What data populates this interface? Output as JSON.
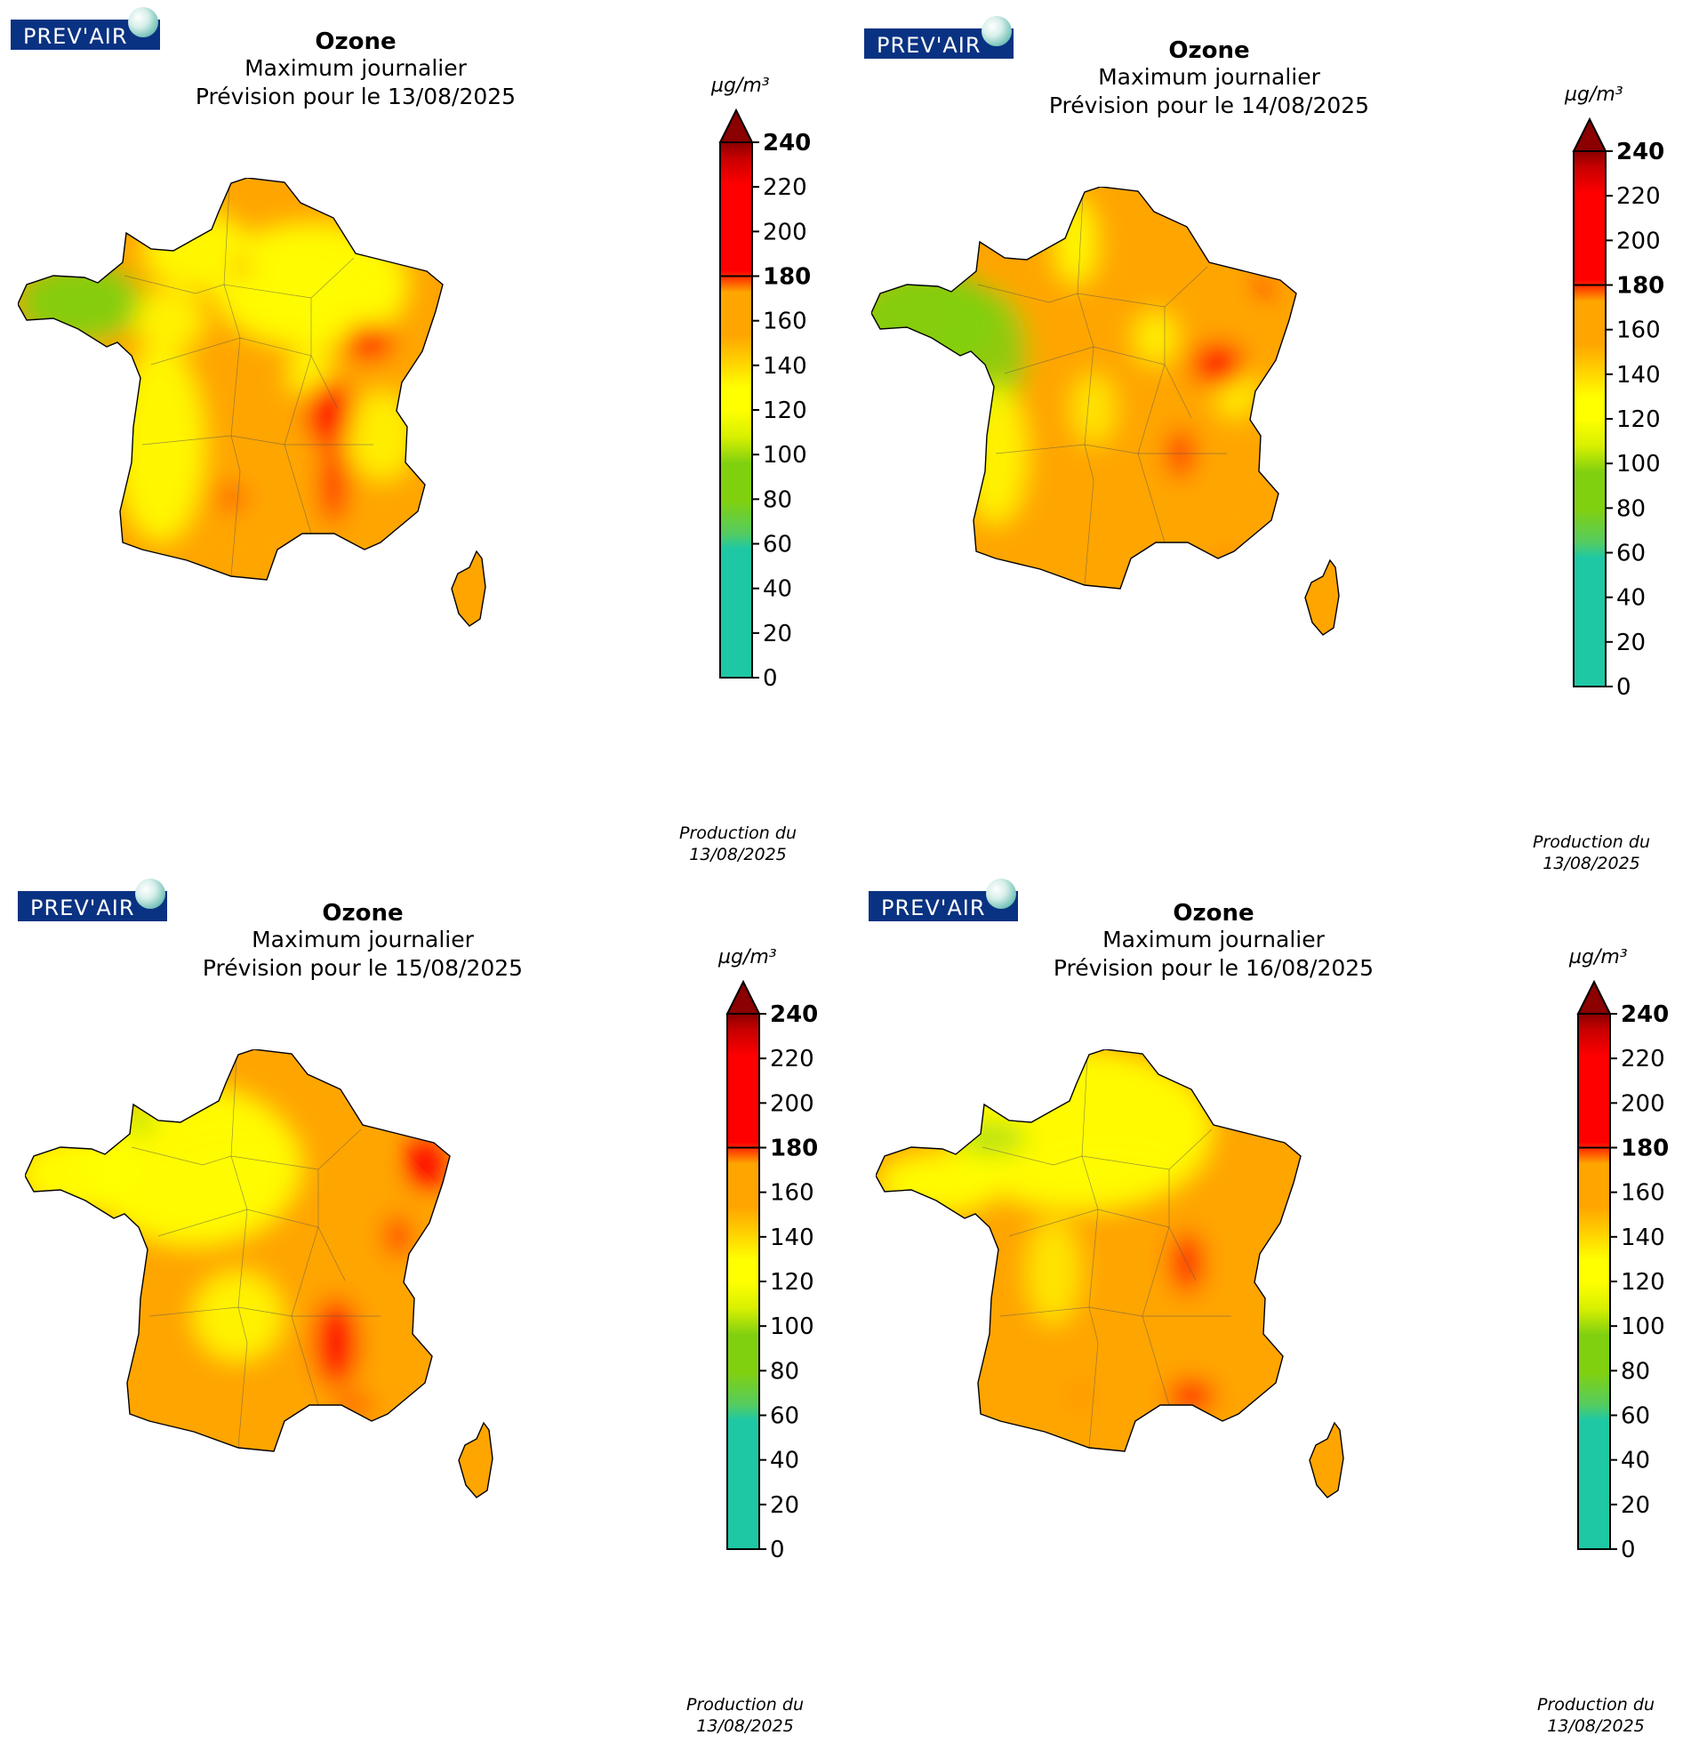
{
  "logo_text": "PREV'AIR",
  "colorbar": {
    "unit": "µg/m³",
    "ticks": [
      "0",
      "20",
      "40",
      "60",
      "80",
      "100",
      "120",
      "140",
      "160",
      "180",
      "200",
      "220",
      "240"
    ],
    "bold_ticks": [
      "180",
      "240"
    ],
    "colors": {
      "teal": "#1ec8a5",
      "green": "#80d010",
      "yellow": "#ffff00",
      "orange": "#ffa500",
      "red": "#ff0000",
      "darkred": "#8b0000"
    }
  },
  "panels": [
    {
      "title": "Ozone",
      "subtitle": "Maximum journalier",
      "forecast": "Prévision pour le 13/08/2025",
      "production_label": "Production du",
      "production_date": "13/08/2025"
    },
    {
      "title": "Ozone",
      "subtitle": "Maximum journalier",
      "forecast": "Prévision pour le 14/08/2025",
      "production_label": "Production du",
      "production_date": "13/08/2025"
    },
    {
      "title": "Ozone",
      "subtitle": "Maximum journalier",
      "forecast": "Prévision pour le 15/08/2025",
      "production_label": "Production du",
      "production_date": "13/08/2025"
    },
    {
      "title": "Ozone",
      "subtitle": "Maximum journalier",
      "forecast": "Prévision pour le 16/08/2025",
      "production_label": "Production du",
      "production_date": "13/08/2025"
    }
  ]
}
